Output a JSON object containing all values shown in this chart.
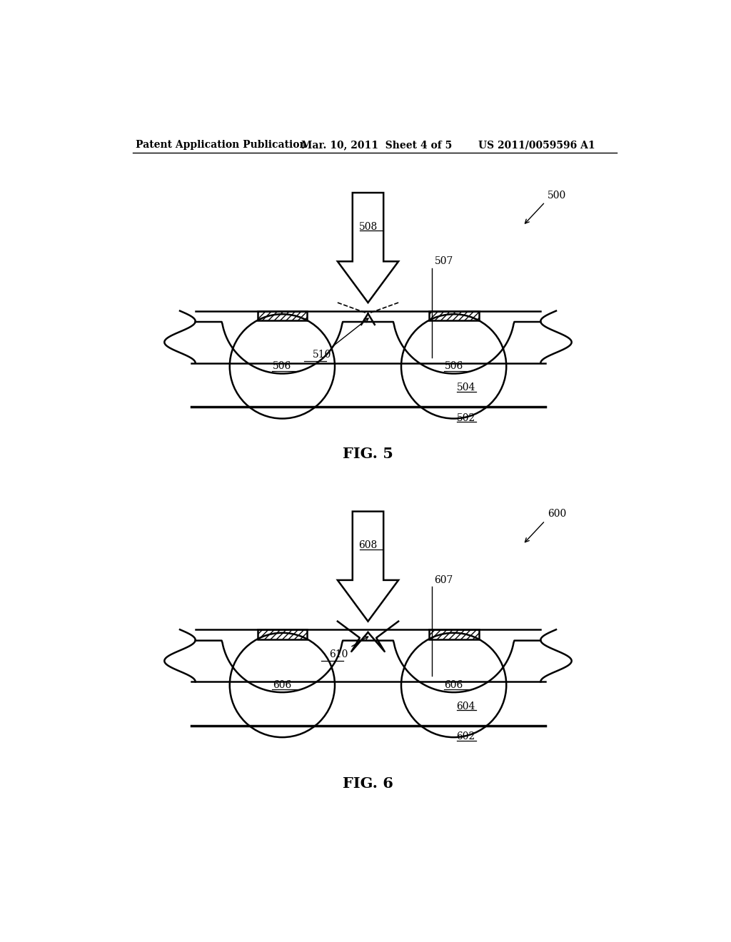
{
  "header_left": "Patent Application Publication",
  "header_mid": "Mar. 10, 2011  Sheet 4 of 5",
  "header_right": "US 2011/0059596 A1",
  "fig5_label": "FIG. 5",
  "fig6_label": "FIG. 6",
  "bg_color": "#ffffff",
  "line_color": "#000000",
  "fig5_ref": "500",
  "fig5_sub1": "502",
  "fig5_sub2": "504",
  "fig5_ball": "506",
  "fig5_coat": "507",
  "fig5_laser": "508",
  "fig5_point": "510",
  "fig6_ref": "600",
  "fig6_sub1": "602",
  "fig6_sub2": "604",
  "fig6_ball": "606",
  "fig6_coat": "607",
  "fig6_laser": "608",
  "fig6_point": "610"
}
